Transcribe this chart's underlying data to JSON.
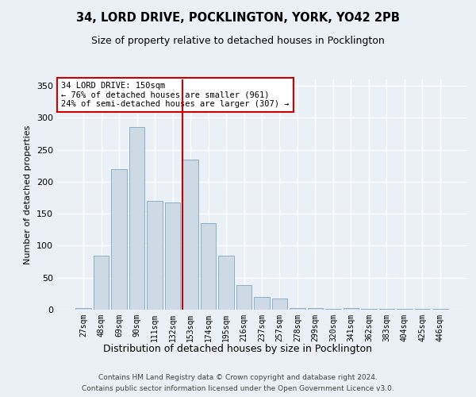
{
  "title_line1": "34, LORD DRIVE, POCKLINGTON, YORK, YO42 2PB",
  "title_line2": "Size of property relative to detached houses in Pocklington",
  "xlabel": "Distribution of detached houses by size in Pocklington",
  "ylabel": "Number of detached properties",
  "categories": [
    "27sqm",
    "48sqm",
    "69sqm",
    "90sqm",
    "111sqm",
    "132sqm",
    "153sqm",
    "174sqm",
    "195sqm",
    "216sqm",
    "237sqm",
    "257sqm",
    "278sqm",
    "299sqm",
    "320sqm",
    "341sqm",
    "362sqm",
    "383sqm",
    "404sqm",
    "425sqm",
    "446sqm"
  ],
  "values": [
    2,
    85,
    220,
    285,
    170,
    168,
    235,
    135,
    85,
    38,
    20,
    18,
    3,
    3,
    1,
    3,
    1,
    1,
    1,
    1,
    1
  ],
  "bar_color": "#cdd9e5",
  "bar_edge_color": "#7ba7c4",
  "vline_color": "#cc0000",
  "annotation_text": "34 LORD DRIVE: 150sqm\n← 76% of detached houses are smaller (961)\n24% of semi-detached houses are larger (307) →",
  "annotation_box_color": "#ffffff",
  "annotation_box_edge": "#cc0000",
  "ylim": [
    0,
    360
  ],
  "yticks": [
    0,
    50,
    100,
    150,
    200,
    250,
    300,
    350
  ],
  "background_color": "#eaf0f6",
  "grid_color": "#ffffff",
  "footer_line1": "Contains HM Land Registry data © Crown copyright and database right 2024.",
  "footer_line2": "Contains public sector information licensed under the Open Government Licence v3.0."
}
